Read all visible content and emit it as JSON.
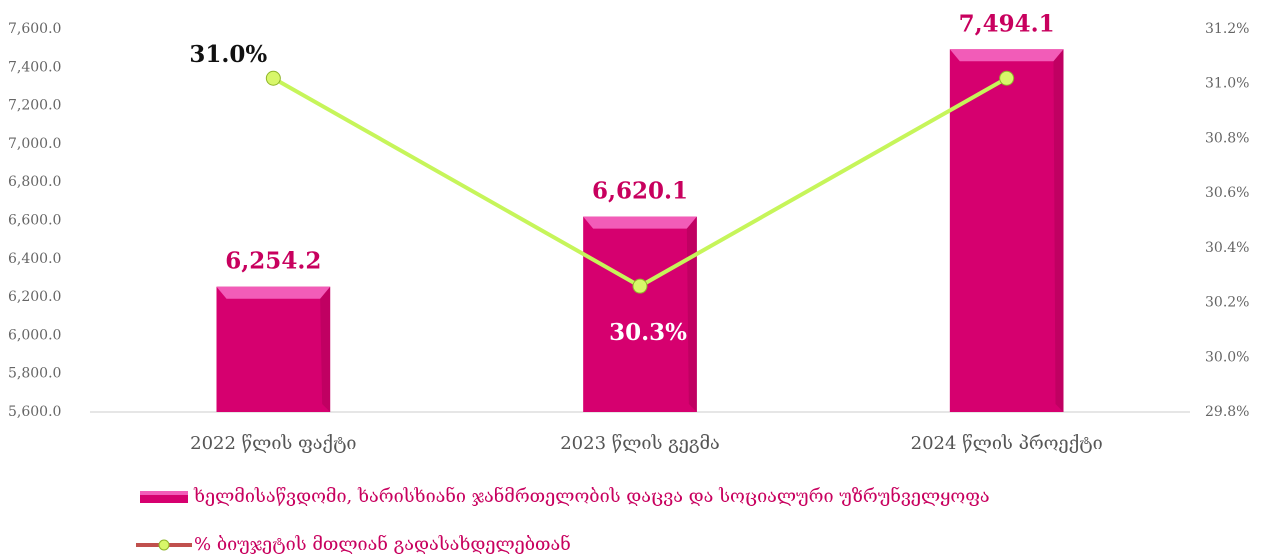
{
  "chart_data": {
    "type": "bar",
    "categories": [
      "2022 წლის ფაქტი",
      "2023 წლის გეგმა",
      "2024 წლის პროექტი"
    ],
    "series": [
      {
        "name": "ხელმისაწვდომი, ხარისხიანი ჯანმრთელობის დაცვა და სოციალური უზრუნველყოფა",
        "type": "bar",
        "color": "#d6006f",
        "values": [
          6254.2,
          6620.1,
          7494.1
        ],
        "value_labels": [
          "6,254.2",
          "6,620.1",
          "7,494.1"
        ]
      },
      {
        "name": "% ბიუჯეტის მთლიან გადასახდელებთან",
        "type": "line",
        "axis": "y2",
        "color": "#c6f55a",
        "values": [
          31.02,
          30.26,
          31.02
        ],
        "value_labels": [
          "31.0%",
          "30.3%",
          "31.0%"
        ]
      }
    ],
    "ylim": [
      5600,
      7600
    ],
    "yticks": [
      {
        "value": 5600,
        "label": "5,600.0"
      },
      {
        "value": 5800,
        "label": "5,800.0"
      },
      {
        "value": 6000,
        "label": "6,000.0"
      },
      {
        "value": 6200,
        "label": "6,200.0"
      },
      {
        "value": 6400,
        "label": "6,400.0"
      },
      {
        "value": 6600,
        "label": "6,600.0"
      },
      {
        "value": 6800,
        "label": "6,800.0"
      },
      {
        "value": 7000,
        "label": "7,000.0"
      },
      {
        "value": 7200,
        "label": "7,200.0"
      },
      {
        "value": 7400,
        "label": "7,400.0"
      },
      {
        "value": 7600,
        "label": "7,600.0"
      }
    ],
    "y2lim": [
      29.8,
      31.2
    ],
    "y2ticks": [
      {
        "value": 29.8,
        "label": "29.8%"
      },
      {
        "value": 30.0,
        "label": "30.0%"
      },
      {
        "value": 30.2,
        "label": "30.2%"
      },
      {
        "value": 30.4,
        "label": "30.4%"
      },
      {
        "value": 30.6,
        "label": "30.6%"
      },
      {
        "value": 30.8,
        "label": "30.8%"
      },
      {
        "value": 31.0,
        "label": "31.0%"
      },
      {
        "value": 31.2,
        "label": "31.2%"
      }
    ],
    "legend": "bottom"
  }
}
